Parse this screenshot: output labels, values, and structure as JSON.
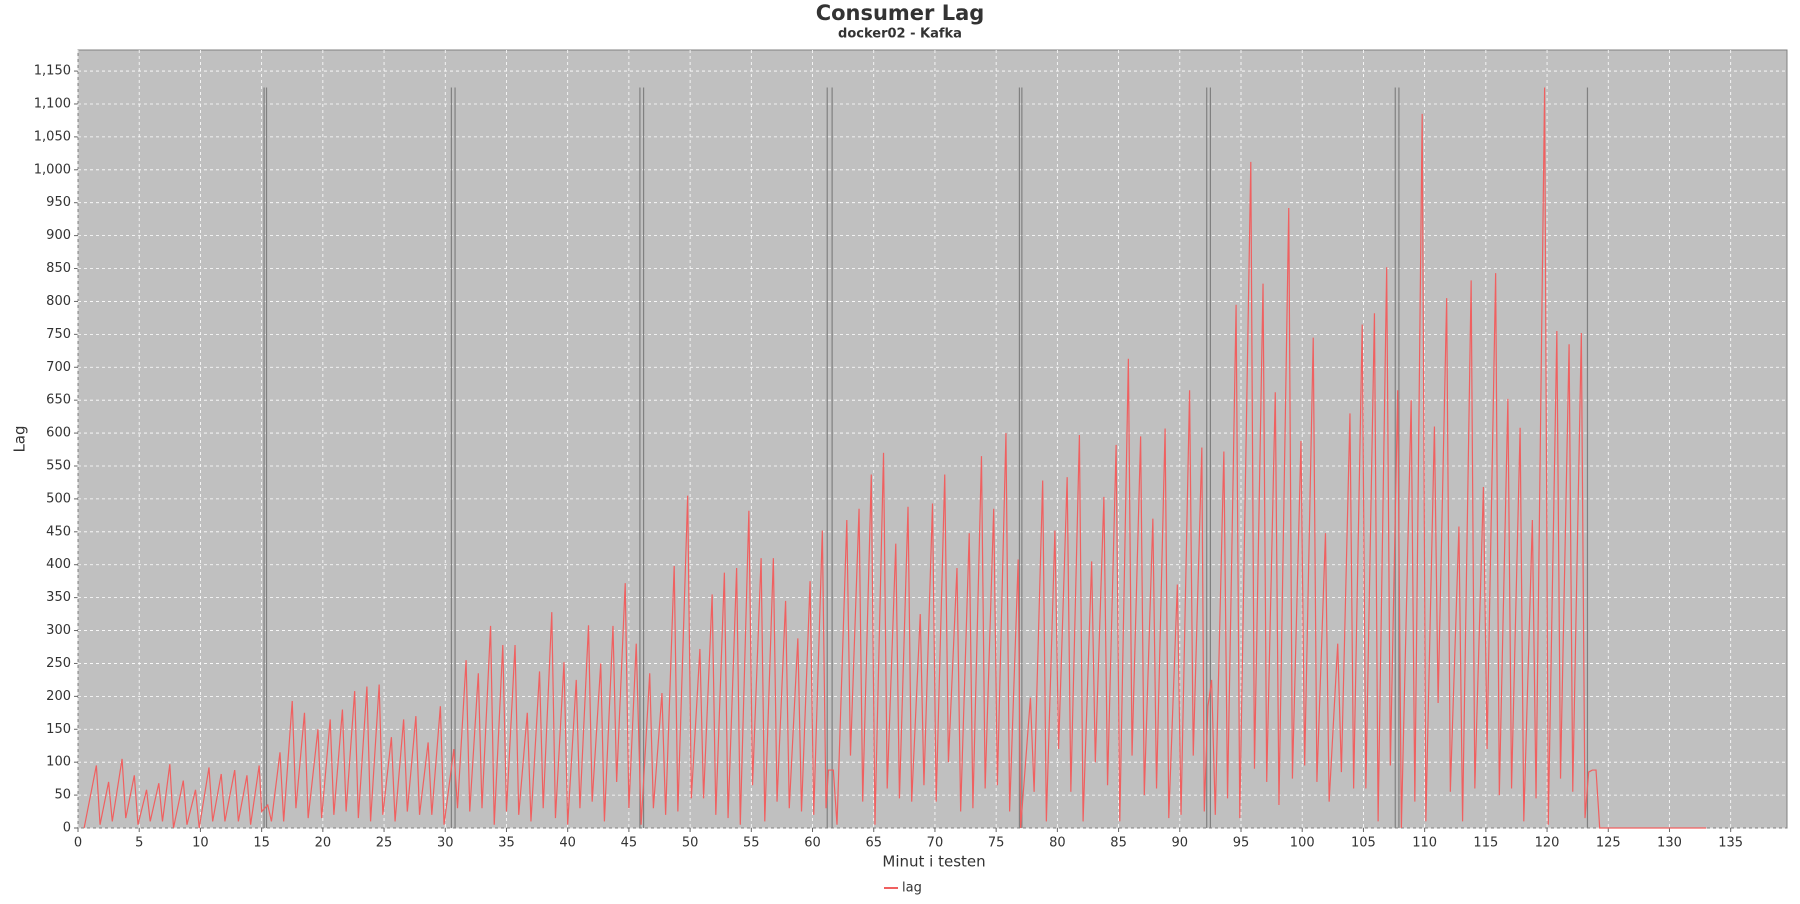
{
  "chart_data": {
    "type": "line",
    "title": "Consumer Lag",
    "subtitle": "docker02 - Kafka",
    "x_label": "Minut i testen",
    "y_label": "Lag",
    "xlim": [
      0,
      139.6
    ],
    "ylim": [
      0,
      1182
    ],
    "xticks": [
      0,
      5,
      10,
      15,
      20,
      25,
      30,
      35,
      40,
      45,
      50,
      55,
      60,
      65,
      70,
      75,
      80,
      85,
      90,
      95,
      100,
      105,
      110,
      115,
      120,
      125,
      130,
      135
    ],
    "yticks": [
      0,
      50,
      100,
      150,
      200,
      250,
      300,
      350,
      400,
      450,
      500,
      550,
      600,
      650,
      700,
      750,
      800,
      850,
      900,
      950,
      {
        "value": 1000,
        "label": "1,000"
      },
      {
        "value": 1050,
        "label": "1,050"
      },
      {
        "value": 1100,
        "label": "1,100"
      },
      {
        "value": 1150,
        "label": "1,150"
      }
    ],
    "grid": true,
    "legend": "bottom",
    "markers": {
      "color": "#808080",
      "top": 1125,
      "x": [
        15.2,
        15.4,
        30.5,
        30.8,
        45.9,
        46.2,
        61.2,
        61.6,
        76.9,
        77.1,
        92.2,
        92.5,
        107.6,
        107.9,
        123.3
      ]
    },
    "x": [
      0.5,
      1.5,
      1.8,
      2.5,
      2.8,
      3.6,
      3.9,
      4.6,
      4.9,
      5.6,
      5.9,
      6.6,
      6.9,
      7.5,
      7.8,
      8.6,
      8.9,
      9.6,
      9.9,
      10.7,
      11,
      11.7,
      12,
      12.8,
      13.1,
      13.8,
      14.1,
      14.8,
      15.0,
      15.5,
      15.8,
      16.5,
      16.8,
      17.5,
      17.8,
      18.5,
      18.8,
      19.6,
      19.9,
      20.6,
      20.9,
      21.6,
      21.9,
      22.6,
      22.9,
      23.6,
      23.9,
      24.6,
      24.9,
      25.6,
      25.9,
      26.6,
      26.9,
      27.6,
      27.9,
      28.6,
      28.9,
      29.6,
      29.9,
      30.7,
      31,
      31.7,
      32,
      32.7,
      33,
      33.7,
      34,
      34.7,
      35,
      35.7,
      36,
      36.7,
      37,
      37.7,
      38,
      38.7,
      39,
      39.7,
      40,
      40.7,
      41,
      41.7,
      42,
      42.7,
      43,
      43.7,
      44,
      44.7,
      45,
      45.6,
      46,
      46.7,
      47,
      47.7,
      48,
      48.7,
      49,
      49.8,
      50.1,
      50.8,
      51.1,
      51.8,
      52.1,
      52.8,
      53.1,
      53.8,
      54.1,
      54.8,
      55.1,
      55.8,
      56.1,
      56.8,
      57.1,
      57.8,
      58.1,
      58.8,
      59.1,
      59.8,
      60.1,
      60.8,
      61.1,
      61.3,
      61.7,
      62,
      62.8,
      63.1,
      63.8,
      64.1,
      64.8,
      65.1,
      65.8,
      66.1,
      66.8,
      67.1,
      67.8,
      68.1,
      68.8,
      69.1,
      69.8,
      70.1,
      70.8,
      71.1,
      71.8,
      72.1,
      72.8,
      73.1,
      73.8,
      74.1,
      74.8,
      75.1,
      75.8,
      76.1,
      76.8,
      77,
      77.8,
      78.1,
      78.8,
      79.1,
      79.8,
      80.1,
      80.8,
      81.1,
      81.8,
      82.1,
      82.8,
      83.1,
      83.8,
      84.1,
      84.8,
      85.1,
      85.8,
      86.1,
      86.8,
      87.1,
      87.8,
      88.1,
      88.8,
      89.1,
      89.8,
      90.1,
      90.8,
      91.1,
      91.8,
      92,
      92.3,
      92.6,
      92.9,
      93.6,
      93.9,
      94.6,
      94.9,
      95.8,
      96.1,
      96.8,
      97.1,
      97.8,
      98.1,
      98.9,
      99.2,
      99.9,
      100.2,
      100.9,
      101.2,
      101.9,
      102.2,
      102.9,
      103.2,
      103.9,
      104.2,
      104.9,
      105.2,
      105.9,
      106.2,
      106.9,
      107.2,
      107.8,
      108.1,
      108.9,
      109.2,
      109.8,
      110.1,
      110.8,
      111.1,
      111.8,
      112.1,
      112.8,
      113.1,
      113.8,
      114.1,
      114.8,
      115.1,
      115.8,
      116.1,
      116.8,
      117.1,
      117.8,
      118.1,
      118.8,
      119.1,
      119.8,
      120.1,
      120.8,
      121.1,
      121.8,
      122.1,
      122.8,
      123.1,
      123.4,
      123.7,
      124,
      124.3,
      133
    ],
    "series": [
      {
        "name": "lag",
        "color": "#f06060",
        "values": [
          0,
          95,
          5,
          70,
          10,
          105,
          15,
          80,
          5,
          58,
          10,
          68,
          10,
          97,
          0,
          72,
          5,
          58,
          0,
          92,
          10,
          82,
          10,
          88,
          10,
          80,
          5,
          95,
          25,
          35,
          10,
          115,
          10,
          193,
          30,
          175,
          15,
          150,
          15,
          165,
          20,
          180,
          25,
          208,
          15,
          215,
          10,
          218,
          20,
          138,
          10,
          165,
          25,
          170,
          20,
          130,
          20,
          185,
          5,
          120,
          30,
          255,
          25,
          235,
          30,
          307,
          5,
          278,
          25,
          278,
          20,
          175,
          10,
          238,
          30,
          328,
          15,
          252,
          5,
          225,
          30,
          308,
          40,
          250,
          10,
          307,
          70,
          372,
          30,
          280,
          5,
          235,
          30,
          205,
          20,
          398,
          25,
          505,
          45,
          272,
          45,
          355,
          20,
          388,
          15,
          395,
          5,
          482,
          65,
          410,
          10,
          410,
          40,
          345,
          30,
          288,
          25,
          375,
          20,
          452,
          30,
          88,
          88,
          5,
          468,
          110,
          485,
          40,
          537,
          5,
          570,
          60,
          432,
          45,
          488,
          40,
          325,
          65,
          493,
          40,
          537,
          100,
          395,
          25,
          448,
          30,
          565,
          60,
          485,
          65,
          600,
          25,
          408,
          0,
          198,
          55,
          528,
          10,
          452,
          120,
          533,
          55,
          597,
          10,
          405,
          100,
          503,
          65,
          582,
          10,
          713,
          110,
          595,
          50,
          470,
          60,
          607,
          15,
          370,
          20,
          665,
          110,
          578,
          25,
          185,
          225,
          20,
          572,
          45,
          795,
          15,
          1012,
          90,
          827,
          70,
          662,
          35,
          942,
          75,
          588,
          95,
          745,
          70,
          448,
          40,
          280,
          85,
          630,
          60,
          765,
          60,
          782,
          10,
          852,
          95,
          665,
          0,
          650,
          40,
          1085,
          10,
          610,
          190,
          805,
          55,
          458,
          10,
          832,
          60,
          518,
          120,
          843,
          50,
          652,
          60,
          608,
          10,
          468,
          45,
          1125,
          5,
          755,
          75,
          735,
          55,
          752,
          15,
          85,
          88,
          88,
          0,
          0
        ]
      }
    ]
  }
}
